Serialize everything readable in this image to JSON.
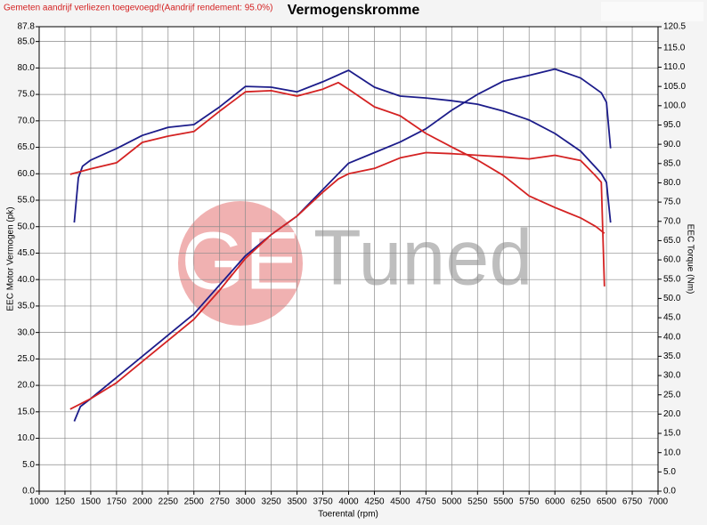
{
  "chart_data": {
    "type": "line",
    "title": "Vermogenskromme",
    "note": "Gemeten aandrijf verliezen toegevoegd!(Aandrijf rendement: 95.0%)",
    "x_label": "Toerental (rpm)",
    "y_label": "EEC Motor Vermogen (pk)",
    "y2_label": "EEC Torque (Nm)",
    "watermark": {
      "logo": "GE",
      "text": "Tuned"
    },
    "grid": true,
    "xlim": [
      1000,
      7000
    ],
    "xticks": [
      1000,
      1250,
      1500,
      1750,
      2000,
      2250,
      2500,
      2750,
      3000,
      3250,
      3500,
      3750,
      4000,
      4250,
      4500,
      4750,
      5000,
      5250,
      5500,
      5750,
      6000,
      6250,
      6500,
      6750,
      7000
    ],
    "ylim": [
      0,
      87.8
    ],
    "yticks": [
      {
        "value": 0,
        "label": "0.0"
      },
      {
        "value": 5,
        "label": "5.0"
      },
      {
        "value": 10,
        "label": "10.0"
      },
      {
        "value": 15,
        "label": "15.0"
      },
      {
        "value": 20,
        "label": "20.0"
      },
      {
        "value": 25,
        "label": "25.0"
      },
      {
        "value": 30,
        "label": "30.0"
      },
      {
        "value": 35,
        "label": "35.0"
      },
      {
        "value": 40,
        "label": "40.0"
      },
      {
        "value": 45,
        "label": "45.0"
      },
      {
        "value": 50,
        "label": "50.0"
      },
      {
        "value": 55,
        "label": "55.0"
      },
      {
        "value": 60,
        "label": "60.0"
      },
      {
        "value": 65,
        "label": "65.0"
      },
      {
        "value": 70,
        "label": "70.0"
      },
      {
        "value": 75,
        "label": "75.0"
      },
      {
        "value": 80,
        "label": "80.0"
      },
      {
        "value": 85,
        "label": "85.0"
      },
      87.8
    ],
    "y2lim": [
      0,
      120.5
    ],
    "y2ticks": [
      {
        "value": 0,
        "label": "0.0"
      },
      {
        "value": 5,
        "label": "5.0"
      },
      {
        "value": 10,
        "label": "10.0"
      },
      {
        "value": 15,
        "label": "15.0"
      },
      {
        "value": 20,
        "label": "20.0"
      },
      {
        "value": 25,
        "label": "25.0"
      },
      {
        "value": 30,
        "label": "30.0"
      },
      {
        "value": 35,
        "label": "35.0"
      },
      {
        "value": 40,
        "label": "40.0"
      },
      {
        "value": 45,
        "label": "45.0"
      },
      {
        "value": 50,
        "label": "50.0"
      },
      {
        "value": 55,
        "label": "55.0"
      },
      {
        "value": 60,
        "label": "60.0"
      },
      {
        "value": 65,
        "label": "65.0"
      },
      {
        "value": 70,
        "label": "70.0"
      },
      {
        "value": 75,
        "label": "75.0"
      },
      {
        "value": 80,
        "label": "80.0"
      },
      {
        "value": 85,
        "label": "85.0"
      },
      {
        "value": 90,
        "label": "90.0"
      },
      {
        "value": 95,
        "label": "95.0"
      },
      {
        "value": 100,
        "label": "100.0"
      },
      {
        "value": 105,
        "label": "105.0"
      },
      {
        "value": 110,
        "label": "110.0"
      },
      {
        "value": 115,
        "label": "115.0"
      },
      {
        "value": 120.5,
        "label": "120.5"
      }
    ],
    "series": [
      {
        "color": "#1c1c8a",
        "x": [
          1340,
          1400,
          1500,
          1750,
          2000,
          2250,
          2500,
          2750,
          3000,
          3250,
          3500,
          3750,
          4000,
          4250,
          4500,
          4750,
          5000,
          5250,
          5500,
          5750,
          6000,
          6250,
          6450,
          6500,
          6540
        ],
        "values": [
          13.2,
          16,
          17.5,
          21.5,
          25.5,
          29.5,
          33.5,
          39,
          44.5,
          48.5,
          52,
          57,
          62,
          64,
          66,
          68.5,
          72,
          75,
          77.5,
          78.6,
          79.8,
          78.1,
          75.3,
          73.5,
          64.8
        ]
      },
      {
        "color": "#d42222",
        "x": [
          1300,
          1500,
          1750,
          2000,
          2250,
          2500,
          2750,
          3000,
          3250,
          3500,
          3750,
          3900,
          4000,
          4250,
          4500,
          4750,
          5000,
          5250,
          5500,
          5750,
          6000,
          6250,
          6400,
          6450,
          6480
        ],
        "values": [
          15.5,
          17.5,
          20.5,
          24.5,
          28.5,
          32.5,
          38,
          44,
          48.5,
          52,
          56.5,
          59,
          60,
          61,
          63,
          64,
          63.8,
          63.5,
          63.2,
          62.8,
          63.5,
          62.5,
          59.5,
          58.4,
          38.7
        ]
      },
      {
        "color": "#1c1c8a",
        "axis": "y2",
        "x": [
          1340,
          1380,
          1420,
          1500,
          1750,
          2000,
          2250,
          2500,
          2750,
          3000,
          3250,
          3500,
          3750,
          4000,
          4250,
          4500,
          4750,
          5000,
          5250,
          5500,
          5750,
          6000,
          6250,
          6450,
          6500,
          6540
        ],
        "values": [
          69.7,
          81.3,
          84.3,
          85.9,
          88.9,
          92.3,
          94.4,
          95.1,
          99.7,
          105,
          104.8,
          103.6,
          106.2,
          109.2,
          104.8,
          102.5,
          102,
          101.3,
          100.4,
          98.6,
          96.3,
          92.8,
          88.2,
          82.4,
          80.1,
          69.7
        ]
      },
      {
        "color": "#d42222",
        "axis": "y2",
        "x": [
          1300,
          1500,
          1750,
          2000,
          2250,
          2500,
          2750,
          3000,
          3250,
          3500,
          3750,
          3900,
          4000,
          4250,
          4500,
          4750,
          5000,
          5250,
          5500,
          5750,
          6000,
          6250,
          6400,
          6480
        ],
        "values": [
          82.2,
          83.6,
          85.2,
          90.5,
          92.1,
          93.3,
          98.6,
          103.6,
          103.9,
          102.5,
          104.3,
          106,
          104.3,
          99.7,
          97.4,
          92.8,
          89.3,
          85.9,
          81.9,
          76.6,
          73.6,
          70.9,
          68.6,
          66.9
        ]
      }
    ]
  }
}
